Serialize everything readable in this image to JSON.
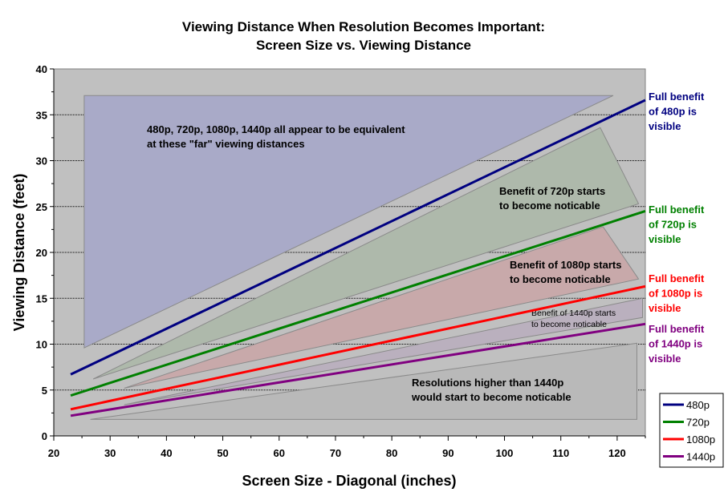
{
  "chart_data": {
    "type": "line",
    "title": [
      "Viewing Distance When Resolution Becomes Important:",
      "Screen Size vs. Viewing Distance"
    ],
    "xlabel": "Screen Size - Diagonal (inches)",
    "ylabel": "Viewing Distance (feet)",
    "xlim": [
      20,
      125
    ],
    "ylim": [
      0,
      40
    ],
    "xticks": [
      20,
      30,
      40,
      50,
      60,
      70,
      80,
      90,
      100,
      110,
      120
    ],
    "yticks": [
      0,
      5,
      10,
      15,
      20,
      25,
      30,
      35,
      40
    ],
    "grid": "horizontal dotted",
    "legend_position": "bottom-right",
    "series": [
      {
        "name": "480p",
        "color": "#000080",
        "x": [
          23,
          125
        ],
        "y": [
          6.7,
          36.6
        ]
      },
      {
        "name": "720p",
        "color": "#008000",
        "x": [
          23,
          125
        ],
        "y": [
          4.4,
          24.5
        ]
      },
      {
        "name": "1080p",
        "color": "#ff0000",
        "x": [
          23,
          125
        ],
        "y": [
          2.9,
          16.3
        ]
      },
      {
        "name": "1440p",
        "color": "#800080",
        "x": [
          23,
          125
        ],
        "y": [
          2.2,
          12.2
        ]
      }
    ],
    "regions": [
      {
        "fill": "#a9aac8",
        "points": [
          [
            25.4,
            37.1
          ],
          [
            119.3,
            37.1
          ],
          [
            25.4,
            9.6
          ]
        ],
        "label": [
          "480p, 720p, 1080p, 1440p all appear to be equivalent",
          "at these \"far\" viewing distances"
        ]
      },
      {
        "fill": "#aeb9ab",
        "points": [
          [
            27,
            6.2
          ],
          [
            117,
            33.6
          ],
          [
            123.8,
            25.3
          ]
        ],
        "label": [
          "Benefit of 720p starts",
          "to become noticable"
        ]
      },
      {
        "fill": "#c8a9aa",
        "points": [
          [
            32.5,
            5.2
          ],
          [
            117.5,
            22.8
          ],
          [
            123.8,
            17.1
          ]
        ],
        "label": [
          "Benefit of 1080p starts",
          "to become noticable"
        ]
      },
      {
        "fill": "#bab0be",
        "points": [
          [
            32.5,
            3.4
          ],
          [
            124.5,
            15.0
          ],
          [
            124.5,
            12.9
          ]
        ],
        "label": [
          "Benefit of 1440p starts",
          "to become noticable"
        ]
      },
      {
        "fill": "#b9b9b9",
        "points": [
          [
            26.5,
            1.8
          ],
          [
            123.5,
            10.1
          ],
          [
            123.5,
            1.8
          ]
        ],
        "label": [
          "Resolutions higher than 1440p",
          "would start to become noticable"
        ]
      }
    ],
    "annotations": [
      {
        "series": "480p",
        "lines": [
          "Full benefit",
          "of 480p is",
          "visible"
        ],
        "color": "#000080"
      },
      {
        "series": "720p",
        "lines": [
          "Full benefit",
          "of 720p is",
          "visible"
        ],
        "color": "#008000"
      },
      {
        "series": "1080p",
        "lines": [
          "Full benefit",
          "of 1080p is",
          "visible"
        ],
        "color": "#ff0000"
      },
      {
        "series": "1440p",
        "lines": [
          "Full benefit",
          "of 1440p is",
          "visible"
        ],
        "color": "#800080"
      }
    ],
    "plot_bg": "#c0c0c0"
  }
}
